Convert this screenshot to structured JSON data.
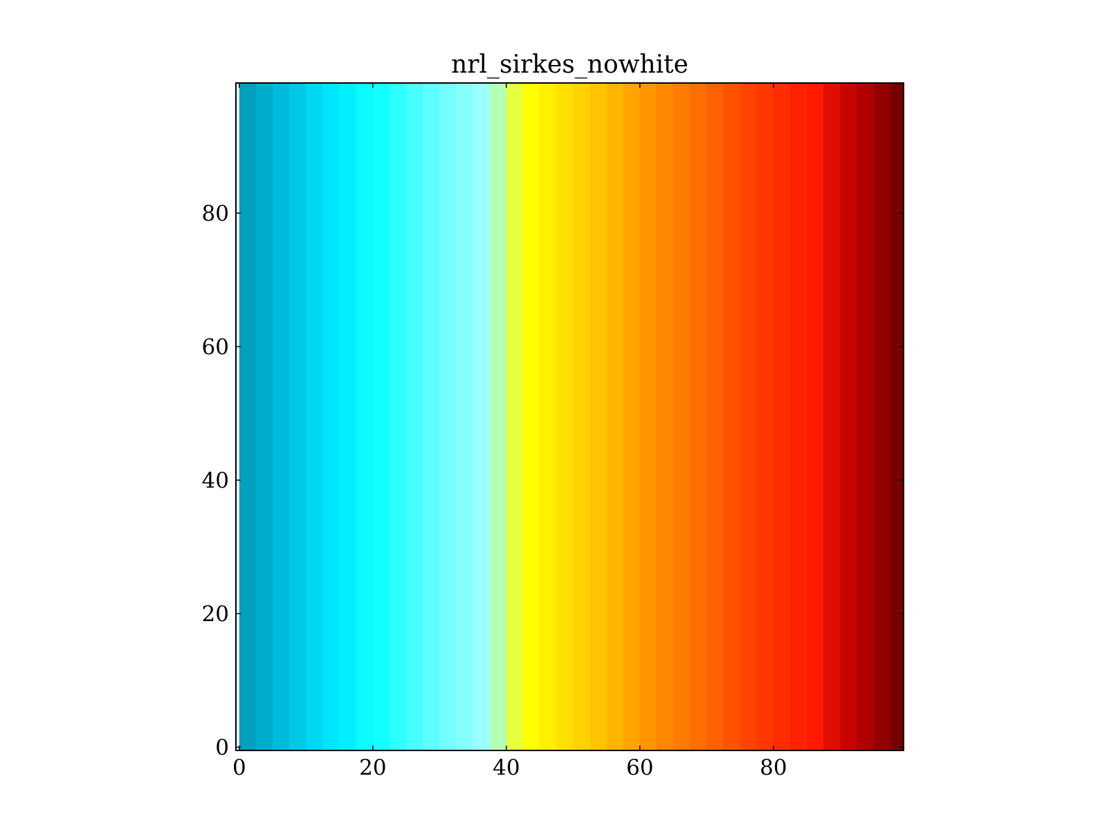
{
  "chart_data": {
    "type": "heatmap",
    "title": "nrl_sirkes_nowhite",
    "xlabel": "",
    "ylabel": "",
    "xlim": [
      -0.5,
      99.5
    ],
    "ylim": [
      -0.5,
      99.5
    ],
    "x_ticks": [
      0,
      20,
      40,
      60,
      80
    ],
    "y_ticks": [
      0,
      20,
      40,
      60,
      80
    ],
    "x_tick_labels": [
      "0",
      "20",
      "40",
      "60",
      "80"
    ],
    "y_tick_labels": [
      "0",
      "20",
      "40",
      "60",
      "80"
    ],
    "value_direction": "values increase along x, constant along y",
    "colormap_name": "nrl_sirkes_nowhite",
    "colormap_bands": [
      {
        "x_start": 0,
        "x_end": 2.5,
        "color": "#00a0bf"
      },
      {
        "x_start": 2.5,
        "x_end": 5,
        "color": "#00adcc"
      },
      {
        "x_start": 5,
        "x_end": 7.5,
        "color": "#00badb"
      },
      {
        "x_start": 7.5,
        "x_end": 10,
        "color": "#00c8e6"
      },
      {
        "x_start": 10,
        "x_end": 12.5,
        "color": "#00d8f2"
      },
      {
        "x_start": 12.5,
        "x_end": 15,
        "color": "#00e6ff"
      },
      {
        "x_start": 15,
        "x_end": 17.5,
        "color": "#00f0ff"
      },
      {
        "x_start": 17.5,
        "x_end": 20,
        "color": "#0afaff"
      },
      {
        "x_start": 20,
        "x_end": 22.5,
        "color": "#14ffff"
      },
      {
        "x_start": 22.5,
        "x_end": 25,
        "color": "#30ffff"
      },
      {
        "x_start": 25,
        "x_end": 27.5,
        "color": "#48ffff"
      },
      {
        "x_start": 27.5,
        "x_end": 30,
        "color": "#5effff"
      },
      {
        "x_start": 30,
        "x_end": 32.5,
        "color": "#74ffff"
      },
      {
        "x_start": 32.5,
        "x_end": 35,
        "color": "#88ffff"
      },
      {
        "x_start": 35,
        "x_end": 37.5,
        "color": "#9cffff"
      },
      {
        "x_start": 37.5,
        "x_end": 40,
        "color": "#b4ffb4"
      },
      {
        "x_start": 40,
        "x_end": 42.5,
        "color": "#e6ff3c"
      },
      {
        "x_start": 42.5,
        "x_end": 45,
        "color": "#ffff00"
      },
      {
        "x_start": 45,
        "x_end": 47.5,
        "color": "#fff000"
      },
      {
        "x_start": 47.5,
        "x_end": 50,
        "color": "#ffe000"
      },
      {
        "x_start": 50,
        "x_end": 52.5,
        "color": "#ffd200"
      },
      {
        "x_start": 52.5,
        "x_end": 55,
        "color": "#ffc400"
      },
      {
        "x_start": 55,
        "x_end": 57.5,
        "color": "#ffb400"
      },
      {
        "x_start": 57.5,
        "x_end": 60,
        "color": "#ffa400"
      },
      {
        "x_start": 60,
        "x_end": 62.5,
        "color": "#ff9600"
      },
      {
        "x_start": 62.5,
        "x_end": 65,
        "color": "#ff8800"
      },
      {
        "x_start": 65,
        "x_end": 67.5,
        "color": "#ff7c00"
      },
      {
        "x_start": 67.5,
        "x_end": 70,
        "color": "#ff6e00"
      },
      {
        "x_start": 70,
        "x_end": 72.5,
        "color": "#ff6000"
      },
      {
        "x_start": 72.5,
        "x_end": 75,
        "color": "#ff5200"
      },
      {
        "x_start": 75,
        "x_end": 77.5,
        "color": "#ff4400"
      },
      {
        "x_start": 77.5,
        "x_end": 80,
        "color": "#ff3800"
      },
      {
        "x_start": 80,
        "x_end": 82.5,
        "color": "#ff2c00"
      },
      {
        "x_start": 82.5,
        "x_end": 85,
        "color": "#ff2200"
      },
      {
        "x_start": 85,
        "x_end": 87.5,
        "color": "#ff1a00"
      },
      {
        "x_start": 87.5,
        "x_end": 90,
        "color": "#e00e00"
      },
      {
        "x_start": 90,
        "x_end": 92.5,
        "color": "#c80400"
      },
      {
        "x_start": 92.5,
        "x_end": 95,
        "color": "#b00000"
      },
      {
        "x_start": 95,
        "x_end": 97.5,
        "color": "#920000"
      },
      {
        "x_start": 97.5,
        "x_end": 99.5,
        "color": "#780000"
      }
    ],
    "grid": false,
    "legend": "none",
    "frame_color": "#000000"
  }
}
